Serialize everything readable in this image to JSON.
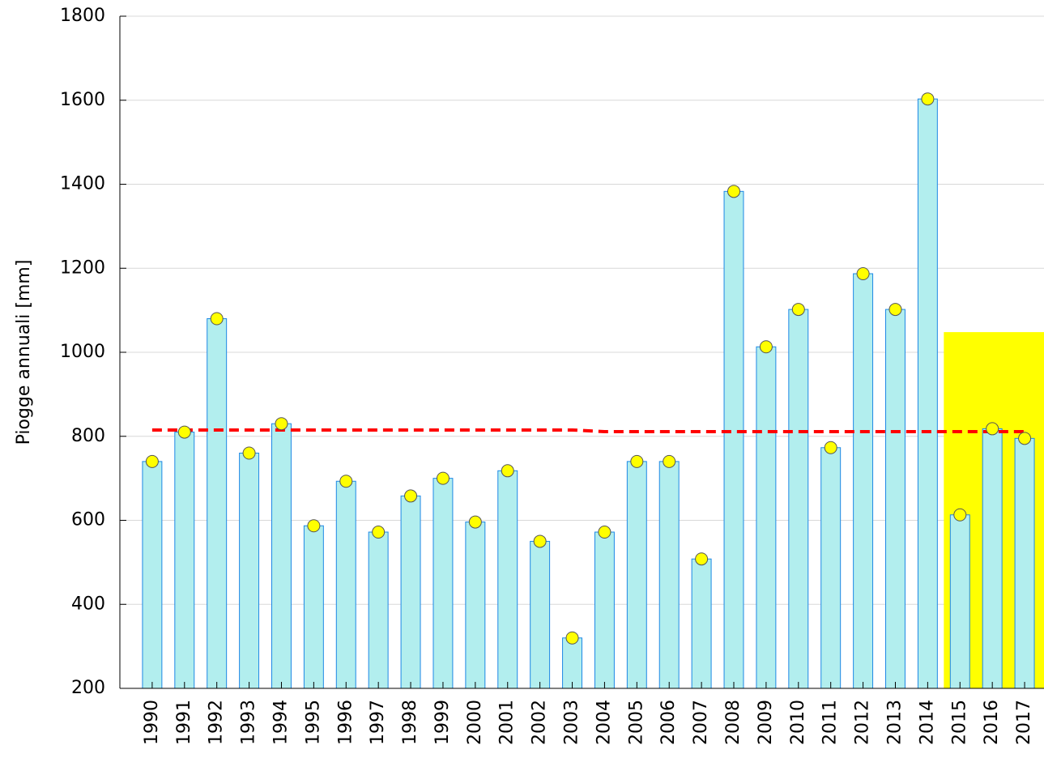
{
  "chart_data": {
    "type": "bar",
    "ylabel": "Piogge annuali [mm]",
    "x": [
      1990,
      1991,
      1992,
      1993,
      1994,
      1995,
      1996,
      1997,
      1998,
      1999,
      2000,
      2001,
      2002,
      2003,
      2004,
      2005,
      2006,
      2007,
      2008,
      2009,
      2010,
      2011,
      2012,
      2013,
      2014,
      2015,
      2016,
      2017
    ],
    "values": [
      740,
      810,
      1080,
      760,
      830,
      587,
      693,
      572,
      658,
      700,
      596,
      718,
      550,
      320,
      572,
      740,
      740,
      508,
      1383,
      1013,
      1102,
      773,
      1187,
      1102,
      1603,
      613,
      818,
      795
    ],
    "color": "#b2eeee",
    "edge_color": "#1e88e5",
    "point_color": "#ffff00",
    "mean_line": {
      "values": [
        815,
        815,
        815,
        815,
        815,
        815,
        815,
        815,
        815,
        815,
        815,
        815,
        815,
        815,
        811,
        811,
        811,
        811,
        811,
        811,
        811,
        811,
        811,
        811,
        811,
        811,
        811,
        811
      ],
      "color": "#ff0000"
    },
    "highlight": {
      "x0": 2014.5,
      "y": 1048,
      "color": "#ffff00"
    },
    "xlim": [
      1989,
      2017.6
    ],
    "xticks": [
      1990,
      1991,
      1992,
      1993,
      1994,
      1995,
      1996,
      1997,
      1998,
      1999,
      2000,
      2001,
      2002,
      2003,
      2004,
      2005,
      2006,
      2007,
      2008,
      2009,
      2010,
      2011,
      2012,
      2013,
      2014,
      2015,
      2016,
      2017
    ],
    "ylim": [
      200,
      1800
    ],
    "yticks": [
      200,
      400,
      600,
      800,
      1000,
      1200,
      1400,
      1600,
      1800
    ],
    "grid": true
  }
}
